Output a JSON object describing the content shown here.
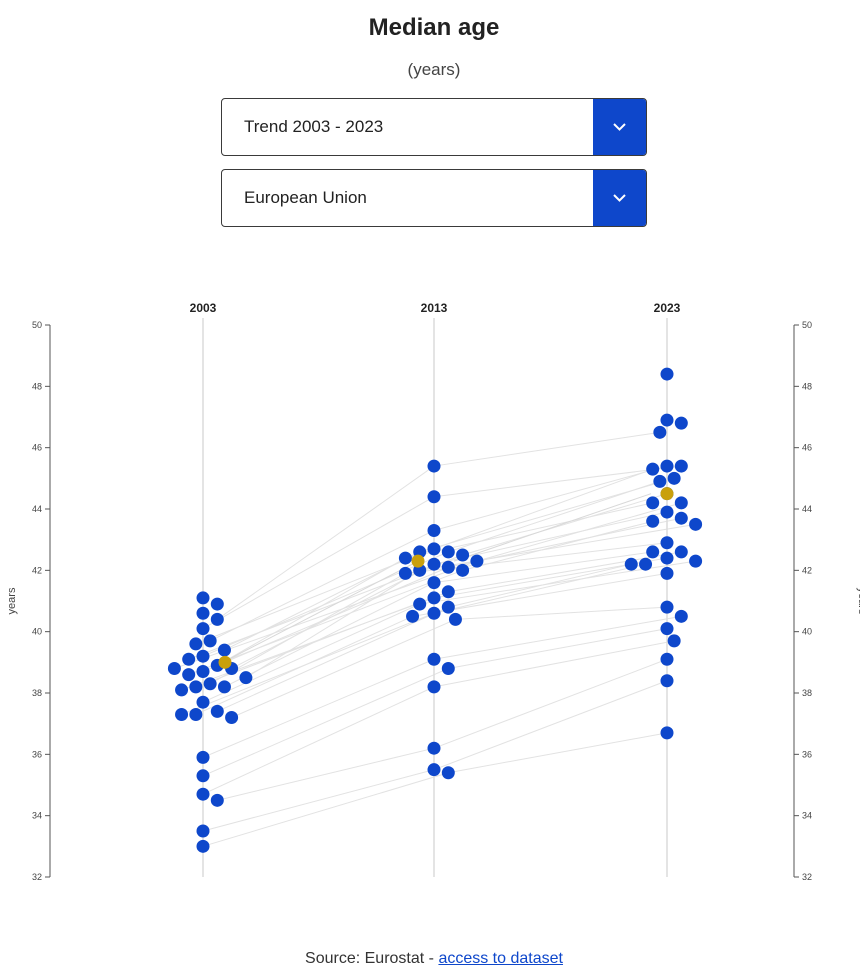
{
  "header": {
    "title": "Median age",
    "subtitle": "(years)"
  },
  "filters": {
    "period": {
      "selected": "Trend 2003 - 2023",
      "icon": "chevron-down-icon"
    },
    "region": {
      "selected": "European Union",
      "icon": "chevron-down-icon"
    }
  },
  "footer": {
    "source_prefix": "Source: Eurostat - ",
    "source_link": "access to dataset"
  },
  "colors": {
    "accent": "#0e47cb",
    "highlight": "#c9a00c",
    "link_line": "#e2e2e2",
    "axis": "#555555"
  },
  "chart_data": {
    "type": "scatter",
    "subtype": "slope beeswarm",
    "x_categories": [
      "2003",
      "2013",
      "2023"
    ],
    "ylabel": "years",
    "ylim": [
      32,
      50
    ],
    "yticks": [
      "32",
      "34",
      "36",
      "38",
      "40",
      "42",
      "44",
      "46",
      "48",
      "50"
    ],
    "highlight_series": "European Union",
    "series_values": {
      "2003": [
        41.1,
        40.9,
        40.6,
        40.4,
        40.1,
        39.7,
        39.6,
        39.4,
        39.2,
        39.1,
        38.9,
        38.8,
        38.8,
        38.7,
        38.6,
        38.5,
        38.3,
        38.2,
        38.2,
        38.1,
        37.7,
        37.4,
        37.3,
        37.3,
        37.2,
        35.9,
        35.3,
        34.7,
        34.5,
        33.5,
        33.0
      ],
      "2013": [
        45.4,
        44.4,
        43.3,
        42.7,
        42.6,
        42.6,
        42.5,
        42.4,
        42.3,
        42.2,
        42.1,
        42.0,
        42.0,
        41.9,
        41.6,
        41.3,
        41.1,
        40.9,
        40.8,
        40.6,
        40.5,
        40.4,
        39.1,
        38.8,
        38.2,
        36.2,
        35.5,
        35.4
      ],
      "2023": [
        48.4,
        46.9,
        46.8,
        46.5,
        45.4,
        45.4,
        45.3,
        45.0,
        44.9,
        44.5,
        44.2,
        44.2,
        43.9,
        43.7,
        43.6,
        43.5,
        42.9,
        42.6,
        42.6,
        42.4,
        42.3,
        42.2,
        42.2,
        41.9,
        40.8,
        40.5,
        40.1,
        39.7,
        39.1,
        38.4,
        36.7
      ]
    },
    "highlight_values": {
      "2003": 39.0,
      "2013": 42.3,
      "2023": 44.5
    },
    "grid": false,
    "legend": "none"
  }
}
